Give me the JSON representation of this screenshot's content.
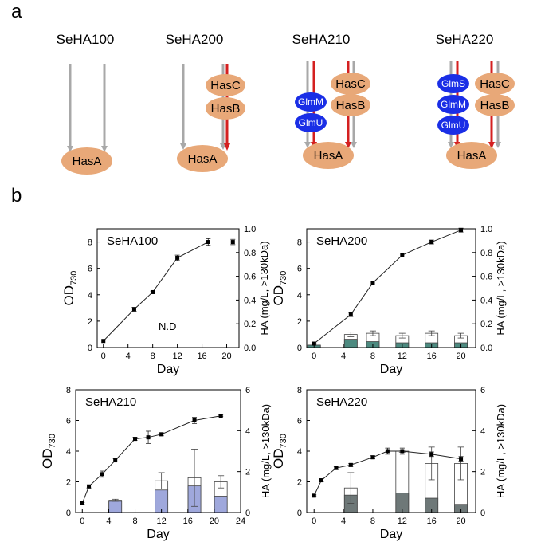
{
  "panel_labels": {
    "a": "a",
    "b": "b"
  },
  "strains": [
    {
      "name": "SeHA100",
      "enzymes": [
        "HasA"
      ]
    },
    {
      "name": "SeHA200",
      "enzymes": [
        "HasC",
        "HasB",
        "HasA"
      ]
    },
    {
      "name": "SeHA210",
      "enzymes": [
        "GlmM",
        "GlmU",
        "HasC",
        "HasB",
        "HasA"
      ]
    },
    {
      "name": "SeHA220",
      "enzymes": [
        "GlmS",
        "GlmM",
        "GlmU",
        "HasC",
        "HasB",
        "HasA"
      ]
    }
  ],
  "colors": {
    "orange_enzyme": "#e8a878",
    "blue_enzyme": "#1a2ee6",
    "red_arrow": "#d42020",
    "gray_arrow": "#a8a8a8"
  },
  "chart_data": [
    {
      "type": "line+bar",
      "title": "SeHA100",
      "xlabel": "Day",
      "ylabel": "OD730",
      "ylabel_main": "OD",
      "ylabel_sub": "730",
      "y2label": "HA (mg/L, >130kDa)",
      "xlim": [
        -1,
        22
      ],
      "ylim": [
        0,
        9
      ],
      "y2lim": [
        0,
        1.0
      ],
      "xticks": [
        "0",
        "4",
        "8",
        "12",
        "16",
        "20"
      ],
      "yticks": [
        "0",
        "2",
        "4",
        "6",
        "8"
      ],
      "y2ticks": [
        "0.0",
        "0.2",
        "0.4",
        "0.6",
        "0.8",
        "1.0"
      ],
      "annotation": "N.D",
      "od": {
        "x": [
          0,
          5,
          8,
          12,
          17,
          21
        ],
        "y": [
          0.5,
          2.9,
          4.2,
          6.8,
          8.0,
          8.0
        ],
        "err": [
          0,
          0.15,
          0.08,
          0.2,
          0.25,
          0.2
        ]
      },
      "ha_bars": [],
      "bar_color": "#8a9a9a"
    },
    {
      "type": "line+bar",
      "title": "SeHA200",
      "xlabel": "Day",
      "ylabel": "OD730",
      "ylabel_main": "OD",
      "ylabel_sub": "730",
      "y2label": "HA (mg/L, >130kDa)",
      "xlim": [
        -1,
        22
      ],
      "ylim": [
        0,
        9
      ],
      "y2lim": [
        0,
        1.0
      ],
      "xticks": [
        "0",
        "4",
        "8",
        "12",
        "16",
        "20"
      ],
      "yticks": [
        "0",
        "2",
        "4",
        "6",
        "8"
      ],
      "y2ticks": [
        "0.0",
        "0.2",
        "0.4",
        "0.6",
        "0.8",
        "1.0"
      ],
      "annotation": "",
      "od": {
        "x": [
          0,
          5,
          8,
          12,
          16,
          20
        ],
        "y": [
          0.3,
          2.5,
          4.9,
          7.0,
          8.0,
          8.9
        ],
        "err": [
          0.05,
          0.15,
          0.15,
          0.15,
          0.15,
          0.15
        ]
      },
      "ha_bars": [
        {
          "x": 0,
          "bottom": 0.02,
          "total": 0.02,
          "err": 0
        },
        {
          "x": 5,
          "bottom": 0.07,
          "total": 0.11,
          "err": 0.02
        },
        {
          "x": 8,
          "bottom": 0.05,
          "total": 0.12,
          "err": 0.02
        },
        {
          "x": 12,
          "bottom": 0.04,
          "total": 0.1,
          "err": 0.02
        },
        {
          "x": 16,
          "bottom": 0.04,
          "total": 0.12,
          "err": 0.02
        },
        {
          "x": 20,
          "bottom": 0.04,
          "total": 0.1,
          "err": 0.02
        }
      ],
      "bar_color": "#4d8a80"
    },
    {
      "type": "line+bar",
      "title": "SeHA210",
      "xlabel": "Day",
      "ylabel": "OD730",
      "ylabel_main": "OD",
      "ylabel_sub": "730",
      "y2label": "HA (mg/L, >130kDa)",
      "xlim": [
        -1,
        24
      ],
      "ylim": [
        0,
        8
      ],
      "y2lim": [
        0,
        6
      ],
      "xticks": [
        "0",
        "4",
        "8",
        "12",
        "16",
        "20",
        "24"
      ],
      "yticks": [
        "0",
        "2",
        "4",
        "6",
        "8"
      ],
      "y2ticks": [
        "0",
        "2",
        "4",
        "6"
      ],
      "annotation": "",
      "od": {
        "x": [
          0,
          1,
          3,
          5,
          8,
          10,
          12,
          17,
          21
        ],
        "y": [
          0.6,
          1.7,
          2.5,
          3.4,
          4.8,
          4.9,
          5.1,
          6.0,
          6.3
        ],
        "err": [
          0.05,
          0.1,
          0.2,
          0.1,
          0.1,
          0.4,
          0.1,
          0.2,
          0.05
        ]
      },
      "ha_bars": [
        {
          "x": 5,
          "bottom": 0.55,
          "total": 0.6,
          "err": 0.05
        },
        {
          "x": 12,
          "bottom": 1.1,
          "total": 1.55,
          "err": 0.4
        },
        {
          "x": 17,
          "bottom": 1.3,
          "total": 1.7,
          "err": 1.4
        },
        {
          "x": 21,
          "bottom": 0.8,
          "total": 1.5,
          "err": 0.3
        }
      ],
      "bar_color": "#9fa8dc"
    },
    {
      "type": "line+bar",
      "title": "SeHA220",
      "xlabel": "Day",
      "ylabel": "OD730",
      "ylabel_main": "OD",
      "ylabel_sub": "730",
      "y2label": "HA (mg/L, >130kDa)",
      "xlim": [
        -1,
        22
      ],
      "ylim": [
        0,
        8
      ],
      "y2lim": [
        0,
        6
      ],
      "xticks": [
        "0",
        "4",
        "8",
        "12",
        "16",
        "20"
      ],
      "yticks": [
        "0",
        "2",
        "4",
        "6",
        "8"
      ],
      "y2ticks": [
        "0",
        "2",
        "4",
        "6"
      ],
      "annotation": "",
      "od": {
        "x": [
          0,
          1,
          3,
          5,
          8,
          10,
          12,
          16,
          20
        ],
        "y": [
          1.1,
          2.1,
          2.9,
          3.1,
          3.6,
          4.0,
          4.0,
          3.8,
          3.5
        ],
        "err": [
          0.05,
          0.1,
          0.1,
          0.1,
          0.1,
          0.2,
          0.2,
          0.15,
          0.15
        ]
      },
      "ha_bars": [
        {
          "x": 5,
          "bottom": 0.85,
          "total": 1.2,
          "err": 0.75
        },
        {
          "x": 12,
          "bottom": 0.95,
          "total": 3.0,
          "err": 0.05
        },
        {
          "x": 16,
          "bottom": 0.7,
          "total": 2.4,
          "err": 0.8
        },
        {
          "x": 20,
          "bottom": 0.4,
          "total": 2.4,
          "err": 0.8
        }
      ],
      "bar_color": "#6e7878"
    }
  ]
}
